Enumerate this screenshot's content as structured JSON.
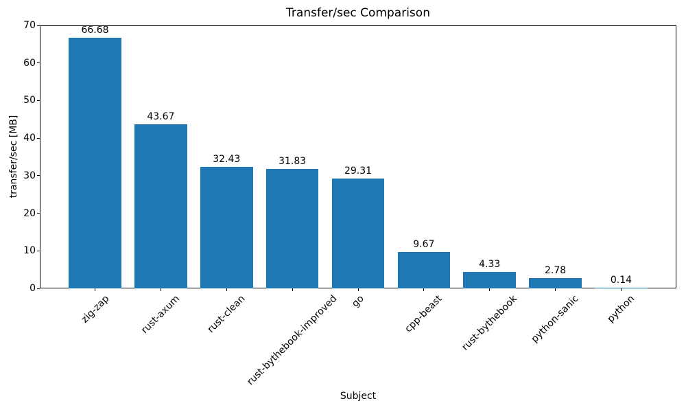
{
  "chart_data": {
    "type": "bar",
    "title": "Transfer/sec Comparison",
    "xlabel": "Subject",
    "ylabel": "transfer/sec [MB]",
    "categories": [
      "zig-zap",
      "rust-axum",
      "rust-clean",
      "rust-bythebook-improved",
      "go",
      "cpp-beast",
      "rust-bythebook",
      "python-sanic",
      "python"
    ],
    "values": [
      66.68,
      43.67,
      32.43,
      31.83,
      29.31,
      9.67,
      4.33,
      2.78,
      0.14
    ],
    "bar_labels": [
      "66.68",
      "43.67",
      "32.43",
      "31.83",
      "29.31",
      "9.67",
      "4.33",
      "2.78",
      "0.14"
    ],
    "ylim": [
      0,
      70
    ],
    "yticks": [
      0,
      10,
      20,
      30,
      40,
      50,
      60,
      70
    ],
    "bar_color": "#1f77b4",
    "text_color": "#000000",
    "grid": false,
    "legend": "none",
    "x_tick_rotation_deg": 45
  }
}
